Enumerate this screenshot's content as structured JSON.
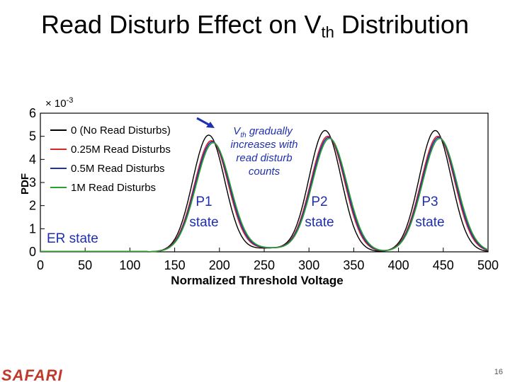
{
  "slide": {
    "title_main": "Read Disturb Effect on V",
    "title_sub": "th",
    "title_rest": " Distribution",
    "logo": "SAFARI",
    "page_number": "16",
    "brand_color": "#c0392b"
  },
  "chart_data": {
    "type": "line",
    "xlabel": "Normalized Threshold Voltage",
    "ylabel": "PDF",
    "y_multiplier": "× 10",
    "y_multiplier_exp": "-3",
    "xlim": [
      0,
      500
    ],
    "ylim": [
      0,
      6
    ],
    "x_ticks": [
      0,
      50,
      100,
      150,
      200,
      250,
      300,
      350,
      400,
      450,
      500
    ],
    "y_ticks": [
      0,
      1,
      2,
      3,
      4,
      5,
      6
    ],
    "legend_position": "top-left",
    "grid": false,
    "series": [
      {
        "name": "0 (No Read Disturbs)",
        "color": "#000000",
        "peaks": [
          {
            "mu": 190,
            "sigma": 18,
            "amp": 5.05
          },
          {
            "mu": 320,
            "sigma": 18,
            "amp": 5.25
          },
          {
            "mu": 443,
            "sigma": 18,
            "amp": 5.25
          }
        ],
        "baseline": 0.15,
        "shift": -2,
        "spread": 1.0
      },
      {
        "name": "0.25M Read Disturbs",
        "color": "#d62728",
        "peaks": [
          {
            "mu": 190,
            "sigma": 18,
            "amp": 5.05
          },
          {
            "mu": 320,
            "sigma": 18,
            "amp": 5.25
          },
          {
            "mu": 443,
            "sigma": 18,
            "amp": 5.25
          }
        ],
        "baseline": 0.15,
        "shift": 1,
        "spread": 1.05
      },
      {
        "name": "0.5M Read Disturbs",
        "color": "#1f2fb0",
        "peaks": [
          {
            "mu": 190,
            "sigma": 18,
            "amp": 5.05
          },
          {
            "mu": 320,
            "sigma": 18,
            "amp": 5.25
          },
          {
            "mu": 443,
            "sigma": 18,
            "amp": 5.25
          }
        ],
        "baseline": 0.15,
        "shift": 2,
        "spread": 1.06
      },
      {
        "name": "1M Read Disturbs",
        "color": "#2ca02c",
        "peaks": [
          {
            "mu": 190,
            "sigma": 18,
            "amp": 5.05
          },
          {
            "mu": 320,
            "sigma": 18,
            "amp": 5.25
          },
          {
            "mu": 443,
            "sigma": 18,
            "amp": 5.25
          }
        ],
        "baseline": 0.15,
        "shift": 3,
        "spread": 1.07
      }
    ],
    "annotations": {
      "er_state": "ER state",
      "p1_state": [
        "P1",
        "state"
      ],
      "p2_state": [
        "P2",
        "state"
      ],
      "p3_state": [
        "P3",
        "state"
      ],
      "vth_note": [
        "gradually",
        "increases with",
        "read disturb",
        "counts"
      ],
      "vth_note_prefix": "V",
      "vth_note_sub": "th",
      "arrow_color": "#1f2fb0"
    }
  }
}
